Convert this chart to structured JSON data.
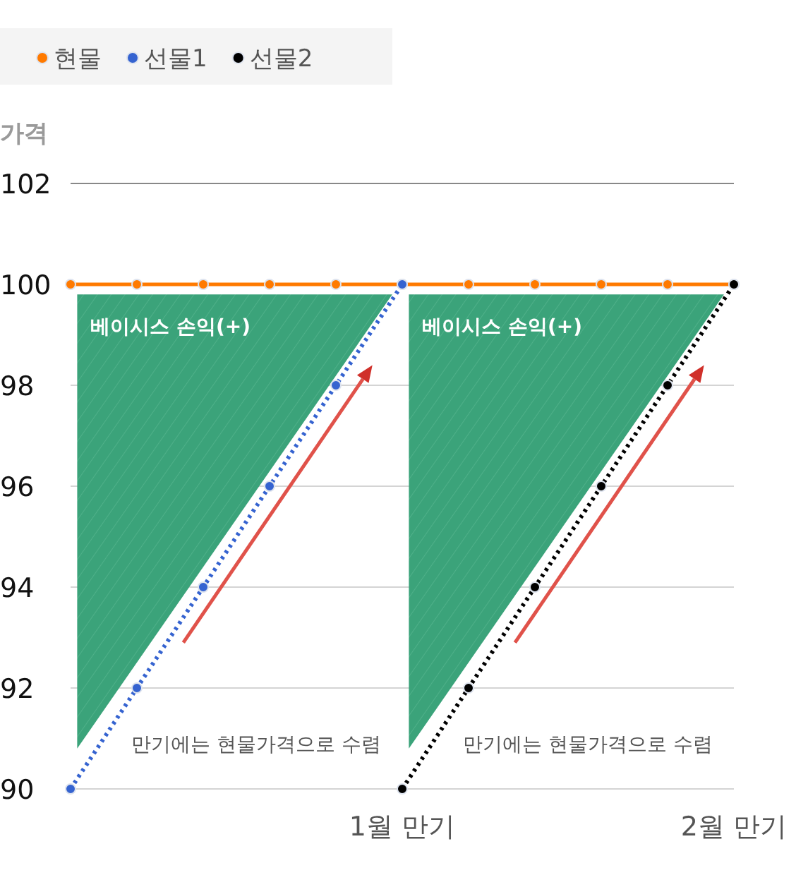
{
  "chart_data": {
    "type": "line",
    "categories": [
      null,
      null,
      null,
      null,
      null,
      "1월 만기",
      null,
      null,
      null,
      null,
      "2월 만기"
    ],
    "series": [
      {
        "name": "현물",
        "color": "#ff7a00",
        "line_style": "solid",
        "values": [
          100,
          100,
          100,
          100,
          100,
          100,
          100,
          100,
          100,
          100,
          100
        ]
      },
      {
        "name": "선물1",
        "color": "#3563d0",
        "line_style": "dotted",
        "values": [
          90,
          92,
          94,
          96,
          98,
          100,
          null,
          null,
          null,
          null,
          null
        ]
      },
      {
        "name": "선물2",
        "color": "#000000",
        "line_style": "dotted",
        "values": [
          null,
          null,
          null,
          null,
          null,
          90,
          92,
          94,
          96,
          98,
          100
        ]
      }
    ],
    "ylabel": "가격",
    "ylim": [
      90,
      102
    ],
    "yticks": [
      90,
      92,
      94,
      96,
      98,
      100,
      102
    ],
    "grid": "y",
    "legend": "top left",
    "marker": "circle",
    "annotations": [
      "베이시스 손익(+)",
      "베이시스 손익(+)",
      "만기에는 현물가격으로 수렴",
      "만기에는 현물가격으로 수렴"
    ]
  }
}
